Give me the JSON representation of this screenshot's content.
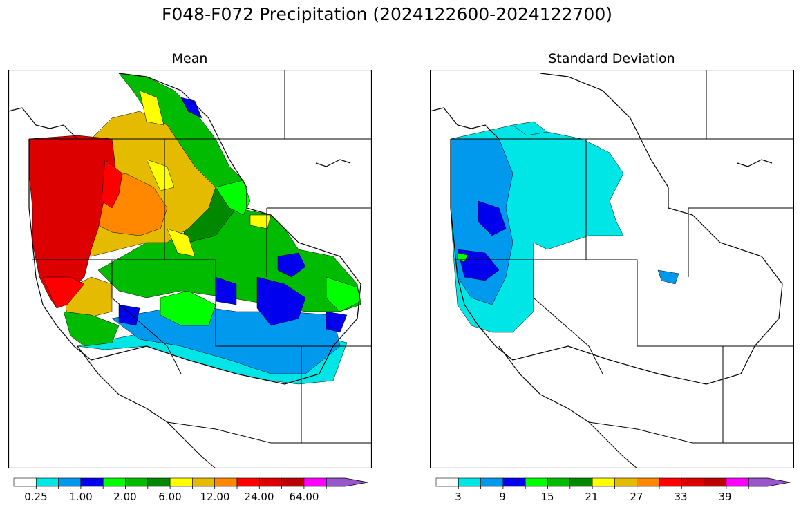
{
  "figure": {
    "title": "F048-F072 Precipitation (2024122600-2024122700)"
  },
  "panels": [
    {
      "title": "Mean",
      "colorbar": {
        "colors": [
          "#ffffff",
          "#00e5e5",
          "#0099ee",
          "#0000ee",
          "#00ff00",
          "#00bb00",
          "#008800",
          "#ffff00",
          "#e5bb00",
          "#ff8800",
          "#ff0000",
          "#dd0000",
          "#bb0000",
          "#ff00ff",
          "#9955cc"
        ],
        "tick_labels": [
          "0.25",
          "1.00",
          "2.00",
          "6.00",
          "12.00",
          "24.00",
          "64.00"
        ]
      }
    },
    {
      "title": "Standard Deviation",
      "colorbar": {
        "colors": [
          "#ffffff",
          "#00e5e5",
          "#0099ee",
          "#0000ee",
          "#00ff00",
          "#00bb00",
          "#008800",
          "#ffff00",
          "#e5bb00",
          "#ff8800",
          "#ff0000",
          "#dd0000",
          "#bb0000",
          "#ff00ff",
          "#9955cc"
        ],
        "tick_labels": [
          "3",
          "9",
          "15",
          "21",
          "27",
          "33",
          "39"
        ]
      }
    }
  ]
}
